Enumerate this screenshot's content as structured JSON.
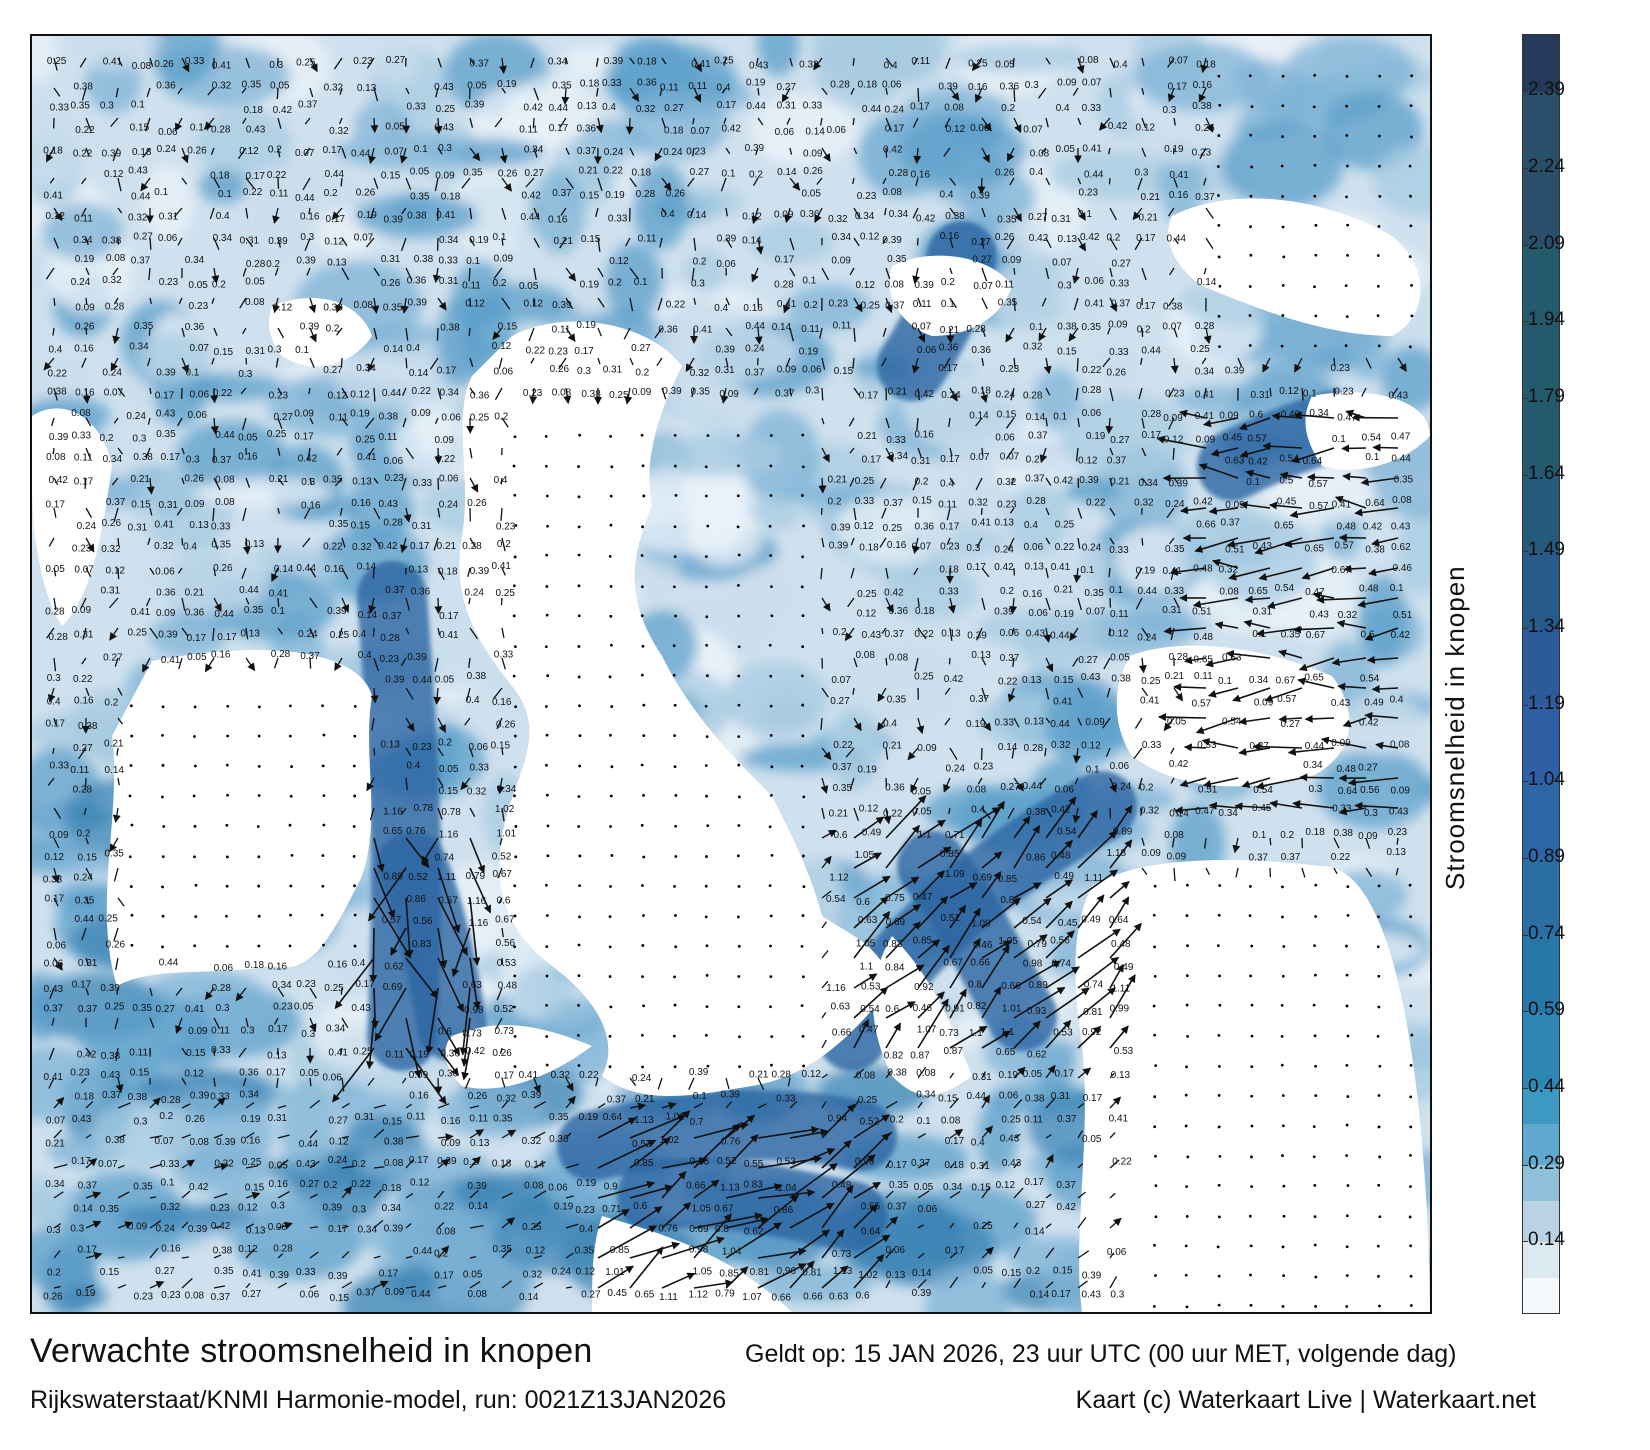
{
  "title": "Verwachte stroomsnelheid in knopen",
  "valid_time": "Geldt op: 15 JAN 2026, 23 uur UTC (00 uur MET, volgende dag)",
  "model_run": "Rijkswaterstaat/KNMI Harmonie-model, run: 0021Z13JAN2026",
  "credit": "Kaart (c) Waterkaart Live | Waterkaart.net",
  "colorbar": {
    "label": "Stroomsnelheid in knopen",
    "ticks": [
      "2.39",
      "2.24",
      "2.09",
      "1.94",
      "1.79",
      "1.64",
      "1.49",
      "1.34",
      "1.19",
      "1.04",
      "0.89",
      "0.74",
      "0.59",
      "0.44",
      "0.29",
      "0.14"
    ],
    "range": [
      0,
      2.5
    ],
    "colors": [
      "#f4f8fb",
      "#dde9f1",
      "#b9d3e4",
      "#8fc0da",
      "#5fa8ce",
      "#3d98c2",
      "#2d86b3",
      "#2778a8",
      "#2a6fa3",
      "#2c66a6",
      "#2f5fa5",
      "#2d5a98",
      "#275b89",
      "#255a7a",
      "#25596c",
      "#2a4f6a",
      "#243a5a",
      "#1c2647"
    ],
    "band_edges": [
      0.0,
      0.07,
      0.14,
      0.22,
      0.29,
      0.37,
      0.44,
      0.59,
      0.74,
      0.89,
      1.04,
      1.19,
      1.34,
      1.49,
      1.64,
      2.09,
      2.39,
      2.5
    ]
  },
  "map": {
    "water_color": "#3f86b6",
    "deep_channel_color": "#2a65a2",
    "land_color": "#ffffff",
    "value_labels": [
      "0.39",
      "0.23",
      "0.28",
      "0.36",
      "0.2",
      "0.19",
      "0.18",
      "0.17",
      "0.06",
      "0.12",
      "0.13",
      "0.14",
      "0.15",
      "0.21",
      "0.22",
      "0.24",
      "0.16",
      "0.17",
      "0.26",
      "0.25",
      "0.27",
      "0.08",
      "0.09",
      "0.1",
      "0.05",
      "0.07",
      "0.11",
      "0.3",
      "0.31",
      "0.32",
      "0.33",
      "0.34",
      "0.35",
      "0.37",
      "0.38",
      "0.4",
      "0.41",
      "0.42",
      "0.43",
      "0.44",
      "0.45",
      "0.46",
      "0.47",
      "0.48",
      "0.49",
      "0.5",
      "0.51",
      "0.52",
      "0.53",
      "0.54",
      "0.55",
      "0.56",
      "0.57",
      "0.6",
      "0.62",
      "0.63",
      "0.64",
      "0.65",
      "0.66",
      "0.67",
      "0.69",
      "0.7",
      "0.71",
      "0.73",
      "0.74",
      "0.75",
      "0.76",
      "0.78",
      "0.79",
      "0.8",
      "0.81",
      "0.82",
      "0.83",
      "0.84",
      "0.85",
      "0.86",
      "0.87",
      "0.89",
      "0.9",
      "0.91",
      "0.92",
      "0.93",
      "0.94",
      "0.96",
      "0.98",
      "0.99",
      "1.01",
      "1.02",
      "1.04",
      "1.05",
      "1.07",
      "1.09",
      "1.1",
      "1.11",
      "1.12",
      "1.13",
      "1.16",
      "1.18",
      "0.03",
      "0.04",
      "0.02",
      "0.01",
      "0"
    ]
  }
}
